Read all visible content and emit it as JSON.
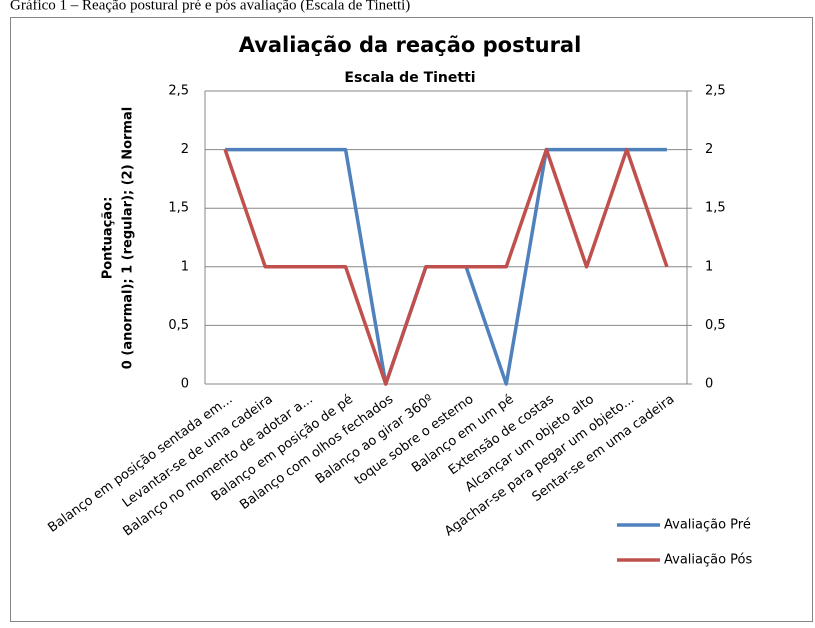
{
  "caption": "Gráfico 1 – Reação postural pré e pós avaliação (Escala de Tinetti)",
  "chart_data": {
    "type": "line",
    "title": "Avaliação da reação postural",
    "subtitle": "Escala de Tinetti",
    "y_label": [
      "Pontuação:",
      "0 (anormal); 1 (regular); (2) Normal"
    ],
    "categories": [
      "Balanço em posição sentada em...",
      "Levantar-se de uma cadeira",
      "Balanço no momento de adotar a...",
      "Balanço em posição de pé",
      "Balanço com olhos fechados",
      "Balanço ao girar 360º",
      "toque sobre o esterno",
      "Balanço em um pé",
      "Extensão de costas",
      "Alcançar um objeto alto",
      "Agachar-se para pegar um objeto...",
      "Sentar-se em uma cadeira"
    ],
    "series": [
      {
        "name": "Avaliação Pré",
        "color": "#4f81bd",
        "values": [
          2,
          2,
          2,
          2,
          0,
          1,
          1,
          0,
          2,
          2,
          2,
          2
        ]
      },
      {
        "name": "Avaliação Pós",
        "color": "#c0504d",
        "values": [
          2,
          1,
          1,
          1,
          0,
          1,
          1,
          1,
          2,
          1,
          2,
          1
        ]
      }
    ],
    "ylim": [
      0,
      2.5
    ],
    "yticks": [
      0,
      {
        "value": 0.5,
        "label": "0,5"
      },
      1,
      {
        "value": 1.5,
        "label": "1,5"
      },
      2,
      {
        "value": 2.5,
        "label": "2,5"
      }
    ],
    "y2lim": [
      0,
      2.5
    ],
    "y2ticks": [
      0,
      {
        "value": 0.5,
        "label": "0,5"
      },
      1,
      {
        "value": 1.5,
        "label": "1,5"
      },
      2,
      {
        "value": 2.5,
        "label": "2,5"
      }
    ],
    "grid": true,
    "legend": "right"
  }
}
